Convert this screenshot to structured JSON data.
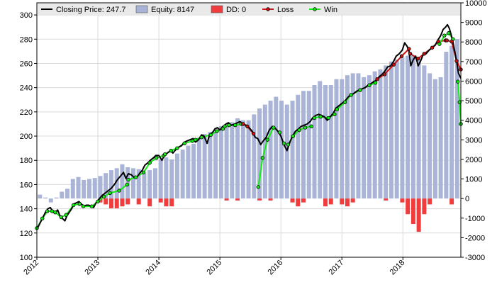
{
  "colors": {
    "price": "#000000",
    "equity": "#a9b4d6",
    "dd": "#f03c3c",
    "loss": "#cc1111",
    "win": "#11ee11",
    "grid": "#d9d9d9",
    "legendBg": "#e9e9e9"
  },
  "legend": [
    {
      "key": "price",
      "label": "Closing Price: 247.7"
    },
    {
      "key": "equity",
      "label": "Equity: 8147"
    },
    {
      "key": "dd",
      "label": "DD: 0"
    },
    {
      "key": "loss",
      "label": "Loss"
    },
    {
      "key": "win",
      "label": "Win"
    }
  ],
  "chart_data": {
    "type": "bar+line",
    "x_range": [
      2012.0,
      2018.95
    ],
    "x_ticks": [
      "2012",
      "2013",
      "2014",
      "2015",
      "2016",
      "2017",
      "2018"
    ],
    "y_left": {
      "range": [
        100,
        310
      ],
      "ticks": [
        "100",
        "120",
        "140",
        "160",
        "180",
        "200",
        "220",
        "240",
        "260",
        "280",
        "300"
      ]
    },
    "y_right": {
      "range": [
        -3000,
        10000
      ],
      "ticks": [
        "-3000",
        "-2000",
        "-1000",
        "0",
        "1000",
        "2000",
        "3000",
        "4000",
        "5000",
        "6000",
        "7000",
        "8000",
        "9000",
        "10000"
      ]
    },
    "equity": [
      [
        2012.05,
        200
      ],
      [
        2012.14,
        50
      ],
      [
        2012.23,
        -200
      ],
      [
        2012.32,
        50
      ],
      [
        2012.41,
        350
      ],
      [
        2012.5,
        500
      ],
      [
        2012.59,
        1000
      ],
      [
        2012.68,
        1100
      ],
      [
        2012.77,
        950
      ],
      [
        2012.86,
        1000
      ],
      [
        2012.95,
        1050
      ],
      [
        2013.04,
        1150
      ],
      [
        2013.13,
        1300
      ],
      [
        2013.22,
        1450
      ],
      [
        2013.31,
        1550
      ],
      [
        2013.4,
        1750
      ],
      [
        2013.49,
        1600
      ],
      [
        2013.58,
        1550
      ],
      [
        2013.67,
        1500
      ],
      [
        2013.76,
        1300
      ],
      [
        2013.85,
        1450
      ],
      [
        2013.94,
        1550
      ],
      [
        2014.03,
        2000
      ],
      [
        2014.12,
        2100
      ],
      [
        2014.21,
        2000
      ],
      [
        2014.3,
        2300
      ],
      [
        2014.39,
        2500
      ],
      [
        2014.48,
        2700
      ],
      [
        2014.57,
        2800
      ],
      [
        2014.66,
        3100
      ],
      [
        2014.75,
        3300
      ],
      [
        2014.84,
        3400
      ],
      [
        2014.93,
        3500
      ],
      [
        2015.02,
        3700
      ],
      [
        2015.11,
        3700
      ],
      [
        2015.2,
        3900
      ],
      [
        2015.29,
        4100
      ],
      [
        2015.38,
        4000
      ],
      [
        2015.47,
        4000
      ],
      [
        2015.56,
        4300
      ],
      [
        2015.65,
        4600
      ],
      [
        2015.74,
        4800
      ],
      [
        2015.83,
        5000
      ],
      [
        2015.92,
        5200
      ],
      [
        2016.01,
        5000
      ],
      [
        2016.1,
        4800
      ],
      [
        2016.19,
        5000
      ],
      [
        2016.28,
        5300
      ],
      [
        2016.37,
        5500
      ],
      [
        2016.46,
        5500
      ],
      [
        2016.55,
        5800
      ],
      [
        2016.64,
        6000
      ],
      [
        2016.73,
        5800
      ],
      [
        2016.82,
        5800
      ],
      [
        2016.91,
        6100
      ],
      [
        2017.0,
        6100
      ],
      [
        2017.09,
        6300
      ],
      [
        2017.18,
        6400
      ],
      [
        2017.27,
        6400
      ],
      [
        2017.36,
        6200
      ],
      [
        2017.45,
        6300
      ],
      [
        2017.54,
        6500
      ],
      [
        2017.63,
        6600
      ],
      [
        2017.72,
        6800
      ],
      [
        2017.81,
        7000
      ],
      [
        2017.9,
        7100
      ],
      [
        2017.99,
        7200
      ],
      [
        2018.08,
        7300
      ],
      [
        2018.17,
        7300
      ],
      [
        2018.26,
        7100
      ],
      [
        2018.35,
        6800
      ],
      [
        2018.44,
        6400
      ],
      [
        2018.53,
        6100
      ],
      [
        2018.62,
        6200
      ],
      [
        2018.71,
        7500
      ],
      [
        2018.8,
        7800
      ],
      [
        2018.89,
        8147
      ]
    ],
    "drawdown": [
      [
        2013.04,
        -200
      ],
      [
        2013.13,
        -300
      ],
      [
        2013.22,
        -500
      ],
      [
        2013.31,
        -500
      ],
      [
        2013.4,
        -400
      ],
      [
        2013.49,
        -300
      ],
      [
        2013.67,
        -300
      ],
      [
        2013.85,
        -400
      ],
      [
        2014.03,
        -200
      ],
      [
        2014.12,
        -400
      ],
      [
        2014.21,
        -400
      ],
      [
        2015.11,
        -100
      ],
      [
        2015.29,
        -100
      ],
      [
        2015.65,
        -100
      ],
      [
        2015.83,
        -100
      ],
      [
        2016.19,
        -200
      ],
      [
        2016.28,
        -400
      ],
      [
        2016.37,
        -200
      ],
      [
        2016.73,
        -400
      ],
      [
        2016.82,
        -300
      ],
      [
        2017.0,
        -300
      ],
      [
        2017.09,
        -400
      ],
      [
        2017.18,
        -200
      ],
      [
        2017.72,
        -100
      ],
      [
        2017.99,
        -200
      ],
      [
        2018.08,
        -800
      ],
      [
        2018.17,
        -1300
      ],
      [
        2018.26,
        -1700
      ],
      [
        2018.35,
        -800
      ],
      [
        2018.44,
        -300
      ],
      [
        2018.8,
        -300
      ]
    ],
    "price": [
      [
        2012.0,
        123
      ],
      [
        2012.03,
        126
      ],
      [
        2012.06,
        129
      ],
      [
        2012.1,
        133
      ],
      [
        2012.14,
        137
      ],
      [
        2012.18,
        140
      ],
      [
        2012.22,
        141
      ],
      [
        2012.26,
        138
      ],
      [
        2012.3,
        137
      ],
      [
        2012.34,
        139
      ],
      [
        2012.38,
        134
      ],
      [
        2012.42,
        132
      ],
      [
        2012.46,
        130
      ],
      [
        2012.49,
        134
      ],
      [
        2012.53,
        137
      ],
      [
        2012.57,
        140
      ],
      [
        2012.61,
        144
      ],
      [
        2012.65,
        145
      ],
      [
        2012.69,
        146
      ],
      [
        2012.73,
        144
      ],
      [
        2012.77,
        142
      ],
      [
        2012.81,
        143
      ],
      [
        2012.85,
        143
      ],
      [
        2012.89,
        142
      ],
      [
        2012.93,
        141
      ],
      [
        2012.97,
        145
      ],
      [
        2013.02,
        148
      ],
      [
        2013.07,
        151
      ],
      [
        2013.12,
        153
      ],
      [
        2013.17,
        155
      ],
      [
        2013.22,
        157
      ],
      [
        2013.27,
        160
      ],
      [
        2013.32,
        164
      ],
      [
        2013.37,
        167
      ],
      [
        2013.42,
        170
      ],
      [
        2013.46,
        165
      ],
      [
        2013.5,
        169
      ],
      [
        2013.55,
        168
      ],
      [
        2013.59,
        166
      ],
      [
        2013.64,
        166
      ],
      [
        2013.68,
        169
      ],
      [
        2013.73,
        172
      ],
      [
        2013.77,
        176
      ],
      [
        2013.82,
        178
      ],
      [
        2013.86,
        180
      ],
      [
        2013.91,
        182
      ],
      [
        2013.95,
        184
      ],
      [
        2014.0,
        184
      ],
      [
        2014.05,
        180
      ],
      [
        2014.09,
        184
      ],
      [
        2014.14,
        186
      ],
      [
        2014.19,
        188
      ],
      [
        2014.23,
        186
      ],
      [
        2014.28,
        189
      ],
      [
        2014.33,
        191
      ],
      [
        2014.37,
        192
      ],
      [
        2014.42,
        195
      ],
      [
        2014.46,
        196
      ],
      [
        2014.51,
        197
      ],
      [
        2014.56,
        198
      ],
      [
        2014.6,
        195
      ],
      [
        2014.65,
        197
      ],
      [
        2014.7,
        201
      ],
      [
        2014.74,
        200
      ],
      [
        2014.79,
        194
      ],
      [
        2014.83,
        201
      ],
      [
        2014.88,
        203
      ],
      [
        2014.92,
        206
      ],
      [
        2014.96,
        207
      ],
      [
        2015.0,
        205
      ],
      [
        2015.05,
        208
      ],
      [
        2015.1,
        210
      ],
      [
        2015.14,
        211
      ],
      [
        2015.19,
        209
      ],
      [
        2015.24,
        210
      ],
      [
        2015.29,
        211
      ],
      [
        2015.33,
        212
      ],
      [
        2015.38,
        210
      ],
      [
        2015.43,
        209
      ],
      [
        2015.48,
        207
      ],
      [
        2015.53,
        204
      ],
      [
        2015.58,
        199
      ],
      [
        2015.62,
        198
      ],
      [
        2015.67,
        193
      ],
      [
        2015.71,
        196
      ],
      [
        2015.76,
        199
      ],
      [
        2015.81,
        205
      ],
      [
        2015.86,
        208
      ],
      [
        2015.9,
        207
      ],
      [
        2015.95,
        204
      ],
      [
        2016.0,
        200
      ],
      [
        2016.05,
        193
      ],
      [
        2016.1,
        188
      ],
      [
        2016.14,
        194
      ],
      [
        2016.19,
        200
      ],
      [
        2016.24,
        204
      ],
      [
        2016.29,
        206
      ],
      [
        2016.33,
        208
      ],
      [
        2016.38,
        209
      ],
      [
        2016.43,
        210
      ],
      [
        2016.48,
        212
      ],
      [
        2016.52,
        215
      ],
      [
        2016.57,
        217
      ],
      [
        2016.62,
        218
      ],
      [
        2016.67,
        217
      ],
      [
        2016.71,
        216
      ],
      [
        2016.76,
        213
      ],
      [
        2016.81,
        216
      ],
      [
        2016.86,
        219
      ],
      [
        2016.9,
        223
      ],
      [
        2016.95,
        225
      ],
      [
        2017.0,
        227
      ],
      [
        2017.05,
        229
      ],
      [
        2017.1,
        232
      ],
      [
        2017.14,
        234
      ],
      [
        2017.19,
        235
      ],
      [
        2017.24,
        237
      ],
      [
        2017.28,
        238
      ],
      [
        2017.33,
        239
      ],
      [
        2017.38,
        240
      ],
      [
        2017.43,
        242
      ],
      [
        2017.47,
        243
      ],
      [
        2017.52,
        245
      ],
      [
        2017.57,
        246
      ],
      [
        2017.61,
        249
      ],
      [
        2017.66,
        251
      ],
      [
        2017.71,
        254
      ],
      [
        2017.75,
        257
      ],
      [
        2017.8,
        258
      ],
      [
        2017.85,
        262
      ],
      [
        2017.89,
        266
      ],
      [
        2017.94,
        268
      ],
      [
        2017.99,
        271
      ],
      [
        2018.03,
        277
      ],
      [
        2018.07,
        274
      ],
      [
        2018.1,
        270
      ],
      [
        2018.13,
        258
      ],
      [
        2018.17,
        263
      ],
      [
        2018.21,
        266
      ],
      [
        2018.25,
        258
      ],
      [
        2018.29,
        262
      ],
      [
        2018.33,
        267
      ],
      [
        2018.38,
        268
      ],
      [
        2018.43,
        271
      ],
      [
        2018.48,
        273
      ],
      [
        2018.53,
        275
      ],
      [
        2018.57,
        279
      ],
      [
        2018.62,
        283
      ],
      [
        2018.66,
        288
      ],
      [
        2018.7,
        290
      ],
      [
        2018.73,
        292
      ],
      [
        2018.76,
        289
      ],
      [
        2018.79,
        284
      ],
      [
        2018.82,
        278
      ],
      [
        2018.85,
        270
      ],
      [
        2018.88,
        262
      ],
      [
        2018.91,
        252
      ],
      [
        2018.95,
        247.7
      ]
    ],
    "trades": [
      {
        "result": "win",
        "points": [
          [
            2012.0,
            124
          ],
          [
            2012.09,
            132
          ],
          [
            2012.17,
            138
          ],
          [
            2012.25,
            138
          ]
        ]
      },
      {
        "result": "win",
        "points": [
          [
            2012.3,
            137
          ],
          [
            2012.4,
            133
          ],
          [
            2012.48,
            135
          ],
          [
            2012.6,
            143
          ],
          [
            2012.7,
            144
          ]
        ]
      },
      {
        "result": "win",
        "points": [
          [
            2012.76,
            142
          ],
          [
            2012.9,
            142
          ],
          [
            2013.0,
            146
          ],
          [
            2013.1,
            150
          ],
          [
            2013.2,
            153
          ],
          [
            2013.35,
            155
          ],
          [
            2013.48,
            160
          ]
        ]
      },
      {
        "result": "win",
        "points": [
          [
            2013.5,
            164
          ],
          [
            2013.62,
            166
          ],
          [
            2013.75,
            170
          ],
          [
            2013.85,
            178
          ],
          [
            2013.96,
            182
          ],
          [
            2014.08,
            184
          ]
        ]
      },
      {
        "result": "win",
        "points": [
          [
            2014.1,
            185
          ],
          [
            2014.2,
            188
          ],
          [
            2014.3,
            190
          ],
          [
            2014.42,
            194
          ],
          [
            2014.55,
            196
          ]
        ]
      },
      {
        "result": "win",
        "points": [
          [
            2014.6,
            197
          ],
          [
            2014.7,
            199
          ],
          [
            2014.85,
            201
          ],
          [
            2014.95,
            204
          ],
          [
            2015.05,
            206
          ]
        ]
      },
      {
        "result": "win",
        "points": [
          [
            2015.08,
            208
          ],
          [
            2015.15,
            209
          ],
          [
            2015.25,
            209
          ],
          [
            2015.35,
            210
          ]
        ]
      },
      {
        "result": "loss",
        "points": [
          [
            2015.38,
            210
          ],
          [
            2015.45,
            208
          ],
          [
            2015.55,
            202
          ]
        ]
      },
      {
        "result": "win",
        "points": [
          [
            2015.63,
            158
          ],
          [
            2015.7,
            182
          ],
          [
            2015.78,
            197
          ],
          [
            2015.88,
            207
          ],
          [
            2015.98,
            203
          ]
        ]
      },
      {
        "result": "win",
        "points": [
          [
            2016.05,
            194
          ],
          [
            2016.12,
            193
          ],
          [
            2016.2,
            200
          ],
          [
            2016.3,
            205
          ],
          [
            2016.4,
            207
          ],
          [
            2016.5,
            208
          ]
        ]
      },
      {
        "result": "win",
        "points": [
          [
            2016.55,
            215
          ],
          [
            2016.65,
            216
          ],
          [
            2016.78,
            215
          ],
          [
            2016.88,
            218
          ]
        ]
      },
      {
        "result": "win",
        "points": [
          [
            2016.92,
            222
          ],
          [
            2017.05,
            228
          ],
          [
            2017.15,
            234
          ],
          [
            2017.3,
            238
          ],
          [
            2017.45,
            242
          ],
          [
            2017.55,
            244
          ]
        ]
      },
      {
        "result": "loss",
        "points": [
          [
            2017.58,
            247
          ],
          [
            2017.7,
            251
          ],
          [
            2017.85,
            259
          ],
          [
            2017.98,
            266
          ],
          [
            2018.1,
            272
          ]
        ]
      },
      {
        "result": "loss",
        "points": [
          [
            2018.12,
            268
          ],
          [
            2018.25,
            264
          ],
          [
            2018.35,
            268
          ],
          [
            2018.48,
            273
          ],
          [
            2018.58,
            278
          ],
          [
            2018.7,
            279
          ]
        ]
      },
      {
        "result": "win",
        "points": [
          [
            2018.6,
            276
          ],
          [
            2018.68,
            283
          ],
          [
            2018.75,
            285
          ],
          [
            2018.82,
            280
          ]
        ]
      },
      {
        "result": "loss",
        "points": [
          [
            2018.72,
            279
          ],
          [
            2018.8,
            278
          ],
          [
            2018.88,
            262
          ],
          [
            2018.95,
            255
          ]
        ]
      },
      {
        "result": "win",
        "points": [
          [
            2018.9,
            245
          ],
          [
            2018.93,
            228
          ],
          [
            2018.95,
            210
          ]
        ]
      }
    ]
  }
}
